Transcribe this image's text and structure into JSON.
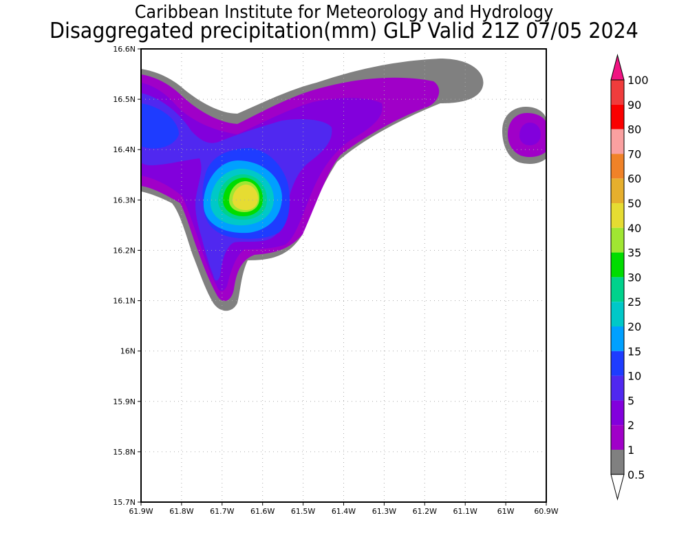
{
  "title_line1": "Caribbean Institute for Meteorology and Hydrology",
  "title_line2": "Disaggregated precipitation(mm) GLP Valid 21Z 07/05 2024",
  "chart_data": {
    "type": "heatmap",
    "lon_range": [
      -61.9,
      -60.9
    ],
    "lat_range": [
      15.7,
      16.6
    ],
    "grid": true,
    "x_ticks": [
      {
        "v": -61.9,
        "label": "61.9W"
      },
      {
        "v": -61.8,
        "label": "61.8W"
      },
      {
        "v": -61.7,
        "label": "61.7W"
      },
      {
        "v": -61.6,
        "label": "61.6W"
      },
      {
        "v": -61.5,
        "label": "61.5W"
      },
      {
        "v": -61.4,
        "label": "61.4W"
      },
      {
        "v": -61.3,
        "label": "61.3W"
      },
      {
        "v": -61.2,
        "label": "61.2W"
      },
      {
        "v": -61.1,
        "label": "61.1W"
      },
      {
        "v": -61.0,
        "label": "61W"
      },
      {
        "v": -60.9,
        "label": "60.9W"
      }
    ],
    "y_ticks": [
      {
        "v": 16.6,
        "label": "16.6N"
      },
      {
        "v": 16.5,
        "label": "16.5N"
      },
      {
        "v": 16.4,
        "label": "16.4N"
      },
      {
        "v": 16.3,
        "label": "16.3N"
      },
      {
        "v": 16.2,
        "label": "16.2N"
      },
      {
        "v": 16.1,
        "label": "16.1N"
      },
      {
        "v": 16.0,
        "label": "16N"
      },
      {
        "v": 15.9,
        "label": "15.9N"
      },
      {
        "v": 15.8,
        "label": "15.8N"
      },
      {
        "v": 15.7,
        "label": "15.7N"
      }
    ],
    "colorbar": {
      "levels": [
        {
          "label": "0.5",
          "color": "#808080"
        },
        {
          "label": "1",
          "color": "#a000c8"
        },
        {
          "label": "2",
          "color": "#8200dc"
        },
        {
          "label": "5",
          "color": "#5028f0"
        },
        {
          "label": "10",
          "color": "#1e3cff"
        },
        {
          "label": "15",
          "color": "#00a0ff"
        },
        {
          "label": "20",
          "color": "#00c8c8"
        },
        {
          "label": "25",
          "color": "#00d28c"
        },
        {
          "label": "30",
          "color": "#00dc00"
        },
        {
          "label": "35",
          "color": "#a0e632"
        },
        {
          "label": "40",
          "color": "#e6dc32"
        },
        {
          "label": "50",
          "color": "#e6af2d"
        },
        {
          "label": "60",
          "color": "#f08228"
        },
        {
          "label": "70",
          "color": "#faa0a0"
        },
        {
          "label": "80",
          "color": "#fa0000"
        },
        {
          "label": "90",
          "color": "#f03c3c"
        },
        {
          "label": "100",
          "color": "#f01482"
        }
      ],
      "under_color": "#ffffff"
    },
    "precip_regions": [
      {
        "level": "0.5",
        "lon_range": [
          -61.9,
          -60.9
        ],
        "lat_range": [
          16.08,
          16.58
        ]
      },
      {
        "level": "1",
        "lon_range": [
          -61.9,
          -60.95
        ],
        "lat_range": [
          16.1,
          16.52
        ]
      },
      {
        "level": "2",
        "lon_range": [
          -61.9,
          -61.4
        ],
        "lat_range": [
          16.12,
          16.5
        ]
      },
      {
        "level": "5",
        "lon_range": [
          -61.9,
          -61.5
        ],
        "lat_range": [
          16.18,
          16.46
        ]
      },
      {
        "level": "10",
        "lon_range": [
          -61.9,
          -61.55
        ],
        "lat_range": [
          16.23,
          16.46
        ]
      },
      {
        "level": "15",
        "lon_range": [
          -61.71,
          -61.55
        ],
        "lat_range": [
          16.24,
          16.35
        ]
      },
      {
        "level": "20",
        "lon_range": [
          -61.7,
          -61.57
        ],
        "lat_range": [
          16.25,
          16.34
        ]
      },
      {
        "level": "25",
        "lon_range": [
          -61.69,
          -61.59
        ],
        "lat_range": [
          16.26,
          16.33
        ]
      },
      {
        "level": "30",
        "lon_range": [
          -61.68,
          -61.6
        ],
        "lat_range": [
          16.27,
          16.33
        ]
      },
      {
        "level": "35",
        "lon_range": [
          -61.67,
          -61.61
        ],
        "lat_range": [
          16.28,
          16.32
        ]
      },
      {
        "level": "40",
        "lon_range": [
          -61.66,
          -61.62
        ],
        "lat_range": [
          16.28,
          16.31
        ]
      }
    ]
  }
}
